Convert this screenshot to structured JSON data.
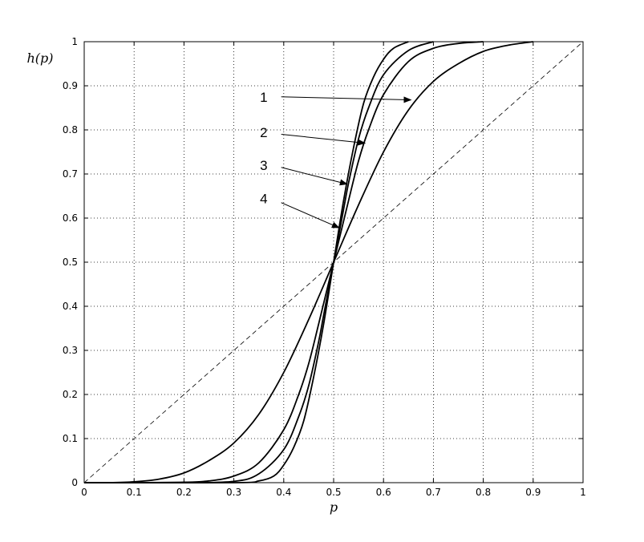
{
  "chart_data": {
    "type": "line",
    "title": "",
    "xlabel": "p",
    "ylabel": "h(p)",
    "xlim": [
      0,
      1
    ],
    "ylim": [
      0,
      1
    ],
    "grid": true,
    "x_ticks": [
      "0",
      "0.1",
      "0.2",
      "0.3",
      "0.4",
      "0.5",
      "0.6",
      "0.7",
      "0.8",
      "0.9",
      "1"
    ],
    "y_ticks": [
      "0",
      "0.1",
      "0.2",
      "0.3",
      "0.4",
      "0.5",
      "0.6",
      "0.7",
      "0.8",
      "0.9",
      "1"
    ],
    "series": [
      {
        "style": "dashed",
        "x": [
          0,
          1
        ],
        "y": [
          0,
          1
        ]
      },
      {
        "style": "solid",
        "x": [
          0.0,
          0.05,
          0.1,
          0.15,
          0.2,
          0.25,
          0.3,
          0.35,
          0.4,
          0.45,
          0.5,
          0.55,
          0.6,
          0.65,
          0.7,
          0.75,
          0.8,
          0.85,
          0.9
        ],
        "y": [
          0.0,
          0.0,
          0.002,
          0.008,
          0.022,
          0.05,
          0.09,
          0.155,
          0.25,
          0.37,
          0.5,
          0.63,
          0.75,
          0.845,
          0.91,
          0.95,
          0.978,
          0.992,
          1.0
        ]
      },
      {
        "style": "solid",
        "x": [
          0.0,
          0.1,
          0.2,
          0.25,
          0.3,
          0.35,
          0.4,
          0.43,
          0.45,
          0.47,
          0.5,
          0.53,
          0.55,
          0.57,
          0.6,
          0.65,
          0.7,
          0.75,
          0.8
        ],
        "y": [
          0.0,
          0.0,
          0.001,
          0.004,
          0.015,
          0.045,
          0.12,
          0.2,
          0.27,
          0.36,
          0.5,
          0.64,
          0.73,
          0.8,
          0.88,
          0.955,
          0.985,
          0.996,
          1.0
        ]
      },
      {
        "style": "solid",
        "x": [
          0.0,
          0.2,
          0.3,
          0.35,
          0.4,
          0.43,
          0.45,
          0.47,
          0.48,
          0.5,
          0.52,
          0.53,
          0.55,
          0.57,
          0.6,
          0.65,
          0.7
        ],
        "y": [
          0.0,
          0.0,
          0.003,
          0.02,
          0.075,
          0.15,
          0.22,
          0.32,
          0.38,
          0.5,
          0.62,
          0.68,
          0.78,
          0.85,
          0.925,
          0.98,
          1.0
        ]
      },
      {
        "style": "solid",
        "x": [
          0.0,
          0.3,
          0.35,
          0.38,
          0.4,
          0.42,
          0.44,
          0.46,
          0.48,
          0.5,
          0.52,
          0.54,
          0.56,
          0.58,
          0.6,
          0.62,
          0.65
        ],
        "y": [
          0.0,
          0.0,
          0.004,
          0.015,
          0.04,
          0.08,
          0.14,
          0.24,
          0.36,
          0.5,
          0.64,
          0.76,
          0.86,
          0.92,
          0.96,
          0.985,
          1.0
        ]
      }
    ],
    "annotations": [
      {
        "label": "1",
        "text_at": [
          0.36,
          0.875
        ],
        "arrow_from": [
          0.395,
          0.875
        ],
        "arrow_to": [
          0.655,
          0.868
        ]
      },
      {
        "label": "2",
        "text_at": [
          0.36,
          0.795
        ],
        "arrow_from": [
          0.395,
          0.79
        ],
        "arrow_to": [
          0.563,
          0.77
        ]
      },
      {
        "label": "3",
        "text_at": [
          0.36,
          0.72
        ],
        "arrow_from": [
          0.395,
          0.715
        ],
        "arrow_to": [
          0.527,
          0.677
        ]
      },
      {
        "label": "4",
        "text_at": [
          0.36,
          0.645
        ],
        "arrow_from": [
          0.395,
          0.635
        ],
        "arrow_to": [
          0.511,
          0.578
        ]
      }
    ]
  }
}
